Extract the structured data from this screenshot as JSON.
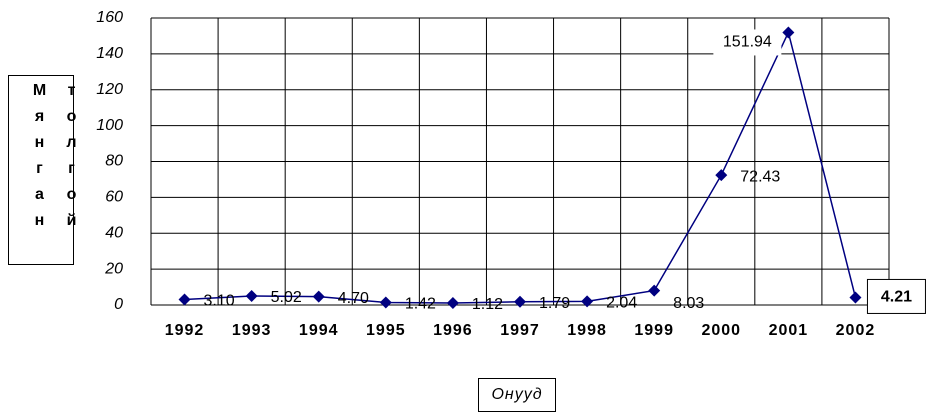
{
  "chart_data": {
    "type": "line",
    "y_label": "Мянган толгой",
    "x_label": "Онууд",
    "categories": [
      "1992",
      "1993",
      "1994",
      "1995",
      "1996",
      "1997",
      "1998",
      "1999",
      "2000",
      "2001",
      "2002"
    ],
    "values": [
      3.1,
      5.02,
      4.7,
      1.42,
      1.12,
      1.79,
      2.04,
      8.03,
      72.43,
      151.94,
      4.21
    ],
    "value_labels": [
      "3.10",
      "5.02",
      "4.70",
      "1.42",
      "1.12",
      "1.79",
      "2.04",
      "8.03",
      "72.43",
      "151.94",
      "4.21"
    ],
    "color": "#000080",
    "ylim": [
      0,
      160
    ],
    "yticks": [
      0,
      20,
      40,
      60,
      80,
      100,
      120,
      140,
      160
    ],
    "grid": true
  }
}
